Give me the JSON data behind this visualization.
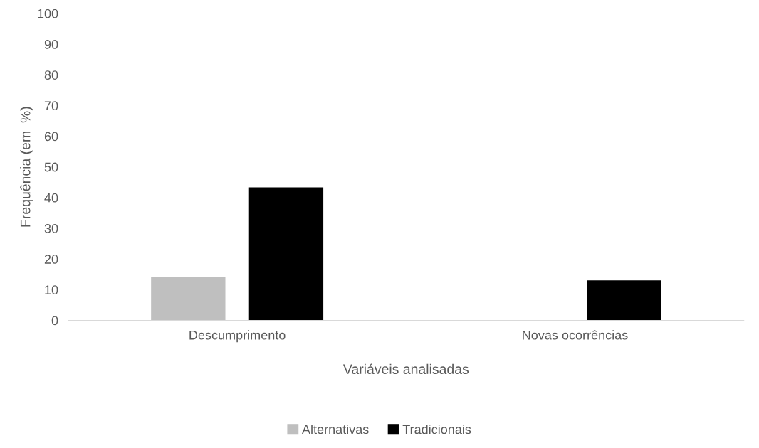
{
  "chart_data": {
    "type": "bar",
    "xlabel": "Variáveis analisadas",
    "ylabel": "Frequência (em  %)",
    "categories": [
      "Descumprimento",
      "Novas ocorrências"
    ],
    "series": [
      {
        "name": "Alternativas",
        "color": "#bfbfbf",
        "values": [
          14,
          0
        ]
      },
      {
        "name": "Tradicionais",
        "color": "#000000",
        "values": [
          43.3,
          13
        ]
      }
    ],
    "ylim": [
      0,
      100
    ],
    "yticks": [
      0,
      10,
      20,
      30,
      40,
      50,
      60,
      70,
      80,
      90,
      100
    ],
    "grid": false,
    "legend": "bottom"
  }
}
